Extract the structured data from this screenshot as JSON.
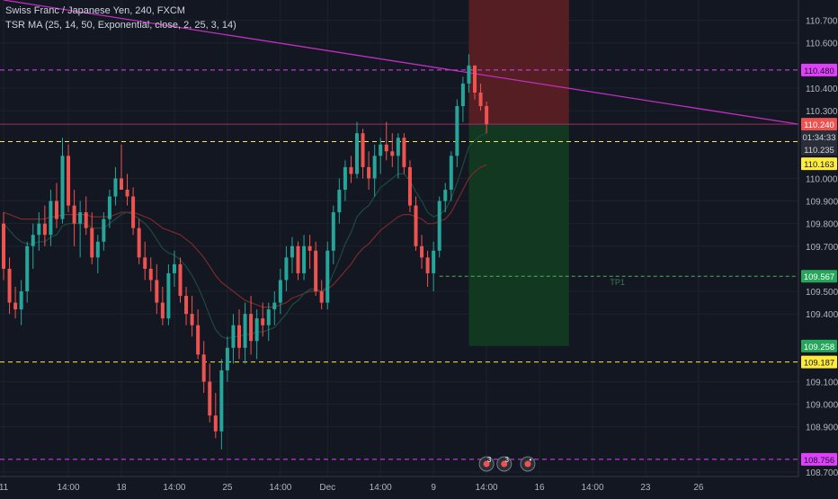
{
  "legend": {
    "title": "Swiss Franc / Japanese Yen, 240, FXCM",
    "indicator": "TSR MA (25, 14, 50, Exponential, close, 2, 25, 3, 14)"
  },
  "colors": {
    "background": "#131722",
    "grid": "#1e222d",
    "up": "#26a69a",
    "down": "#ef5350",
    "trendline": "#c02fc0",
    "magenta_dash": "#e040fb",
    "yellow_dash": "#ffeb3b",
    "stop_zone": "#5d1f24",
    "target_zone": "#123a22",
    "current_price_tag": "#ef5350",
    "tp_tag": "#4caf50",
    "target_tag": "#26a65b",
    "countdown_tag": "#2a2e39",
    "ma_dark_red": "#7a2a2a",
    "ma_dark_green": "#1d4a3c"
  },
  "chart_data": {
    "type": "candlestick",
    "ylim": [
      108.68,
      110.79
    ],
    "y_ticks": [
      "110.700",
      "110.600",
      "110.400",
      "110.300",
      "110.000",
      "109.900",
      "109.800",
      "109.700",
      "109.500",
      "109.400",
      "109.100",
      "109.000",
      "108.900",
      "108.700"
    ],
    "x_ticks": [
      {
        "label": "11",
        "i": 0
      },
      {
        "label": "14:00",
        "i": 11
      },
      {
        "label": "18",
        "i": 20
      },
      {
        "label": "14:00",
        "i": 29
      },
      {
        "label": "25",
        "i": 38
      },
      {
        "label": "14:00",
        "i": 47
      },
      {
        "label": "Dec",
        "i": 55
      },
      {
        "label": "14:00",
        "i": 64
      },
      {
        "label": "9",
        "i": 73
      },
      {
        "label": "14:00",
        "i": 82
      },
      {
        "label": "16",
        "i": 91
      },
      {
        "label": "14:00",
        "i": 100
      },
      {
        "label": "23",
        "i": 109
      },
      {
        "label": "26",
        "i": 118
      }
    ],
    "price_labels": [
      {
        "text": "110.480",
        "price": 110.48,
        "style": "magenta"
      },
      {
        "text": "110.240",
        "price": 110.24,
        "style": "red"
      },
      {
        "text": "01:34:33",
        "price": 110.185,
        "style": "countdown"
      },
      {
        "text": "110.235",
        "price": 110.13,
        "style": "countdown"
      },
      {
        "text": "110.163",
        "price": 110.065,
        "style": "yellow"
      },
      {
        "text": "109.567",
        "price": 109.567,
        "style": "green"
      },
      {
        "text": "109.258",
        "price": 109.258,
        "style": "green"
      },
      {
        "text": "109.187",
        "price": 109.187,
        "style": "yellow"
      },
      {
        "text": "108.756",
        "price": 108.756,
        "style": "magenta"
      }
    ],
    "horizontal_lines": [
      {
        "price": 110.48,
        "style": "magenta-dash"
      },
      {
        "price": 110.163,
        "style": "yellow-dash"
      },
      {
        "price": 109.187,
        "style": "yellow-dash"
      },
      {
        "price": 108.756,
        "style": "magenta-dash"
      },
      {
        "price": 110.24,
        "style": "entry-thin"
      }
    ],
    "trendline": {
      "from": {
        "i": 0,
        "price": 110.79
      },
      "to": {
        "i": 129,
        "price": 110.24
      }
    },
    "position": {
      "start_i": 79,
      "end_i": 96,
      "entry": 110.24,
      "stop": 110.79,
      "target": 109.258
    },
    "tp_line": {
      "start_i": 74,
      "end_i": 129,
      "price": 109.567,
      "label": "TP1"
    },
    "event_markers": [
      {
        "i": 82,
        "glyph": "3"
      },
      {
        "i": 85,
        "glyph": "3"
      },
      {
        "i": 89,
        "glyph": "•"
      }
    ],
    "candles": [
      {
        "o": 109.8,
        "h": 109.85,
        "l": 109.55,
        "c": 109.6
      },
      {
        "o": 109.6,
        "h": 109.65,
        "l": 109.4,
        "c": 109.45
      },
      {
        "o": 109.45,
        "h": 109.52,
        "l": 109.38,
        "c": 109.42
      },
      {
        "o": 109.42,
        "h": 109.55,
        "l": 109.35,
        "c": 109.5
      },
      {
        "o": 109.5,
        "h": 109.72,
        "l": 109.45,
        "c": 109.7
      },
      {
        "o": 109.7,
        "h": 109.8,
        "l": 109.6,
        "c": 109.75
      },
      {
        "o": 109.75,
        "h": 109.85,
        "l": 109.68,
        "c": 109.8
      },
      {
        "o": 109.8,
        "h": 109.88,
        "l": 109.7,
        "c": 109.75
      },
      {
        "o": 109.75,
        "h": 109.95,
        "l": 109.7,
        "c": 109.9
      },
      {
        "o": 109.9,
        "h": 109.98,
        "l": 109.78,
        "c": 109.82
      },
      {
        "o": 109.82,
        "h": 110.18,
        "l": 109.8,
        "c": 110.1
      },
      {
        "o": 110.1,
        "h": 110.15,
        "l": 109.85,
        "c": 109.88
      },
      {
        "o": 109.88,
        "h": 109.95,
        "l": 109.7,
        "c": 109.8
      },
      {
        "o": 109.8,
        "h": 109.9,
        "l": 109.65,
        "c": 109.85
      },
      {
        "o": 109.85,
        "h": 109.92,
        "l": 109.75,
        "c": 109.78
      },
      {
        "o": 109.78,
        "h": 109.85,
        "l": 109.62,
        "c": 109.65
      },
      {
        "o": 109.65,
        "h": 109.75,
        "l": 109.58,
        "c": 109.72
      },
      {
        "o": 109.72,
        "h": 109.85,
        "l": 109.68,
        "c": 109.82
      },
      {
        "o": 109.82,
        "h": 109.95,
        "l": 109.78,
        "c": 109.92
      },
      {
        "o": 109.92,
        "h": 110.05,
        "l": 109.88,
        "c": 110.0
      },
      {
        "o": 110.0,
        "h": 110.15,
        "l": 109.95,
        "c": 109.95
      },
      {
        "o": 109.95,
        "h": 110.02,
        "l": 109.88,
        "c": 109.92
      },
      {
        "o": 109.92,
        "h": 109.96,
        "l": 109.75,
        "c": 109.78
      },
      {
        "o": 109.78,
        "h": 109.82,
        "l": 109.62,
        "c": 109.65
      },
      {
        "o": 109.65,
        "h": 109.72,
        "l": 109.55,
        "c": 109.6
      },
      {
        "o": 109.6,
        "h": 109.65,
        "l": 109.5,
        "c": 109.55
      },
      {
        "o": 109.55,
        "h": 109.62,
        "l": 109.4,
        "c": 109.45
      },
      {
        "o": 109.45,
        "h": 109.52,
        "l": 109.35,
        "c": 109.38
      },
      {
        "o": 109.38,
        "h": 109.62,
        "l": 109.35,
        "c": 109.58
      },
      {
        "o": 109.58,
        "h": 109.68,
        "l": 109.52,
        "c": 109.62
      },
      {
        "o": 109.62,
        "h": 109.65,
        "l": 109.45,
        "c": 109.48
      },
      {
        "o": 109.48,
        "h": 109.52,
        "l": 109.35,
        "c": 109.4
      },
      {
        "o": 109.4,
        "h": 109.48,
        "l": 109.3,
        "c": 109.35
      },
      {
        "o": 109.35,
        "h": 109.42,
        "l": 109.2,
        "c": 109.22
      },
      {
        "o": 109.22,
        "h": 109.28,
        "l": 109.05,
        "c": 109.1
      },
      {
        "o": 109.1,
        "h": 109.18,
        "l": 108.92,
        "c": 108.95
      },
      {
        "o": 108.95,
        "h": 109.05,
        "l": 108.85,
        "c": 108.88
      },
      {
        "o": 108.88,
        "h": 109.2,
        "l": 108.8,
        "c": 109.15
      },
      {
        "o": 109.15,
        "h": 109.3,
        "l": 109.1,
        "c": 109.25
      },
      {
        "o": 109.25,
        "h": 109.4,
        "l": 109.18,
        "c": 109.35
      },
      {
        "o": 109.35,
        "h": 109.42,
        "l": 109.2,
        "c": 109.25
      },
      {
        "o": 109.25,
        "h": 109.45,
        "l": 109.18,
        "c": 109.4
      },
      {
        "o": 109.4,
        "h": 109.48,
        "l": 109.22,
        "c": 109.28
      },
      {
        "o": 109.28,
        "h": 109.42,
        "l": 109.2,
        "c": 109.38
      },
      {
        "o": 109.38,
        "h": 109.45,
        "l": 109.3,
        "c": 109.35
      },
      {
        "o": 109.35,
        "h": 109.45,
        "l": 109.28,
        "c": 109.42
      },
      {
        "o": 109.42,
        "h": 109.5,
        "l": 109.35,
        "c": 109.45
      },
      {
        "o": 109.45,
        "h": 109.6,
        "l": 109.4,
        "c": 109.55
      },
      {
        "o": 109.55,
        "h": 109.7,
        "l": 109.5,
        "c": 109.65
      },
      {
        "o": 109.65,
        "h": 109.74,
        "l": 109.58,
        "c": 109.7
      },
      {
        "o": 109.7,
        "h": 109.72,
        "l": 109.55,
        "c": 109.58
      },
      {
        "o": 109.58,
        "h": 109.75,
        "l": 109.55,
        "c": 109.7
      },
      {
        "o": 109.7,
        "h": 109.75,
        "l": 109.6,
        "c": 109.68
      },
      {
        "o": 109.68,
        "h": 109.72,
        "l": 109.48,
        "c": 109.5
      },
      {
        "o": 109.5,
        "h": 109.55,
        "l": 109.42,
        "c": 109.45
      },
      {
        "o": 109.45,
        "h": 109.72,
        "l": 109.42,
        "c": 109.68
      },
      {
        "o": 109.68,
        "h": 109.88,
        "l": 109.62,
        "c": 109.85
      },
      {
        "o": 109.85,
        "h": 110.0,
        "l": 109.8,
        "c": 109.95
      },
      {
        "o": 109.95,
        "h": 110.08,
        "l": 109.9,
        "c": 110.05
      },
      {
        "o": 110.05,
        "h": 110.1,
        "l": 109.98,
        "c": 110.02
      },
      {
        "o": 110.02,
        "h": 110.25,
        "l": 110.0,
        "c": 110.2
      },
      {
        "o": 110.2,
        "h": 110.22,
        "l": 110.0,
        "c": 110.05
      },
      {
        "o": 110.05,
        "h": 110.12,
        "l": 109.95,
        "c": 110.0
      },
      {
        "o": 110.0,
        "h": 110.15,
        "l": 109.92,
        "c": 110.1
      },
      {
        "o": 110.1,
        "h": 110.18,
        "l": 110.02,
        "c": 110.15
      },
      {
        "o": 110.15,
        "h": 110.25,
        "l": 110.08,
        "c": 110.12
      },
      {
        "o": 110.12,
        "h": 110.2,
        "l": 110.05,
        "c": 110.1
      },
      {
        "o": 110.1,
        "h": 110.2,
        "l": 110.0,
        "c": 110.18
      },
      {
        "o": 110.18,
        "h": 110.2,
        "l": 110.02,
        "c": 110.05
      },
      {
        "o": 110.05,
        "h": 110.08,
        "l": 109.85,
        "c": 109.88
      },
      {
        "o": 109.88,
        "h": 109.92,
        "l": 109.68,
        "c": 109.7
      },
      {
        "o": 109.7,
        "h": 109.75,
        "l": 109.6,
        "c": 109.65
      },
      {
        "o": 109.65,
        "h": 109.68,
        "l": 109.52,
        "c": 109.58
      },
      {
        "o": 109.58,
        "h": 109.72,
        "l": 109.5,
        "c": 109.68
      },
      {
        "o": 109.68,
        "h": 109.92,
        "l": 109.65,
        "c": 109.9
      },
      {
        "o": 109.9,
        "h": 109.98,
        "l": 109.85,
        "c": 109.95
      },
      {
        "o": 109.95,
        "h": 110.12,
        "l": 109.9,
        "c": 110.1
      },
      {
        "o": 110.1,
        "h": 110.35,
        "l": 110.05,
        "c": 110.32
      },
      {
        "o": 110.32,
        "h": 110.45,
        "l": 110.25,
        "c": 110.42
      },
      {
        "o": 110.42,
        "h": 110.55,
        "l": 110.38,
        "c": 110.5
      },
      {
        "o": 110.5,
        "h": 110.5,
        "l": 110.35,
        "c": 110.38
      },
      {
        "o": 110.38,
        "h": 110.42,
        "l": 110.3,
        "c": 110.32
      },
      {
        "o": 110.32,
        "h": 110.34,
        "l": 110.2,
        "c": 110.24
      }
    ],
    "ma_red": [
      109.85,
      109.84,
      109.83,
      109.82,
      109.82,
      109.82,
      109.82,
      109.82,
      109.83,
      109.83,
      109.84,
      109.84,
      109.84,
      109.84,
      109.84,
      109.83,
      109.83,
      109.83,
      109.83,
      109.84,
      109.85,
      109.85,
      109.85,
      109.84,
      109.83,
      109.82,
      109.8,
      109.78,
      109.77,
      109.76,
      109.75,
      109.73,
      109.71,
      109.68,
      109.65,
      109.61,
      109.57,
      109.54,
      109.52,
      109.5,
      109.48,
      109.46,
      109.45,
      109.44,
      109.43,
      109.43,
      109.43,
      109.44,
      109.45,
      109.47,
      109.48,
      109.49,
      109.5,
      109.5,
      109.5,
      109.51,
      109.53,
      109.56,
      109.59,
      109.62,
      109.66,
      109.69,
      109.71,
      109.74,
      109.77,
      109.79,
      109.81,
      109.83,
      109.84,
      109.84,
      109.83,
      109.82,
      109.8,
      109.8,
      109.81,
      109.82,
      109.85,
      109.9,
      109.95,
      110.0,
      110.03,
      110.05,
      110.06
    ],
    "ma_green": [
      109.8,
      109.77,
      109.74,
      109.72,
      109.71,
      109.71,
      109.72,
      109.72,
      109.74,
      109.75,
      109.79,
      109.8,
      109.8,
      109.8,
      109.8,
      109.78,
      109.78,
      109.78,
      109.8,
      109.82,
      109.84,
      109.85,
      109.84,
      109.82,
      109.8,
      109.77,
      109.73,
      109.69,
      109.67,
      109.66,
      109.64,
      109.61,
      109.57,
      109.52,
      109.46,
      109.39,
      109.33,
      109.3,
      109.29,
      109.3,
      109.3,
      109.31,
      109.31,
      109.32,
      109.32,
      109.33,
      109.34,
      109.37,
      109.4,
      109.44,
      109.46,
      109.49,
      109.51,
      109.51,
      109.5,
      109.52,
      109.58,
      109.64,
      109.71,
      109.76,
      109.83,
      109.86,
      109.88,
      109.92,
      109.96,
      109.98,
      110.0,
      110.02,
      110.02,
      109.99,
      109.94,
      109.9,
      109.85,
      109.83,
      109.84,
      109.86,
      109.91,
      109.98,
      110.06,
      110.14,
      110.17,
      110.19,
      110.2
    ]
  }
}
